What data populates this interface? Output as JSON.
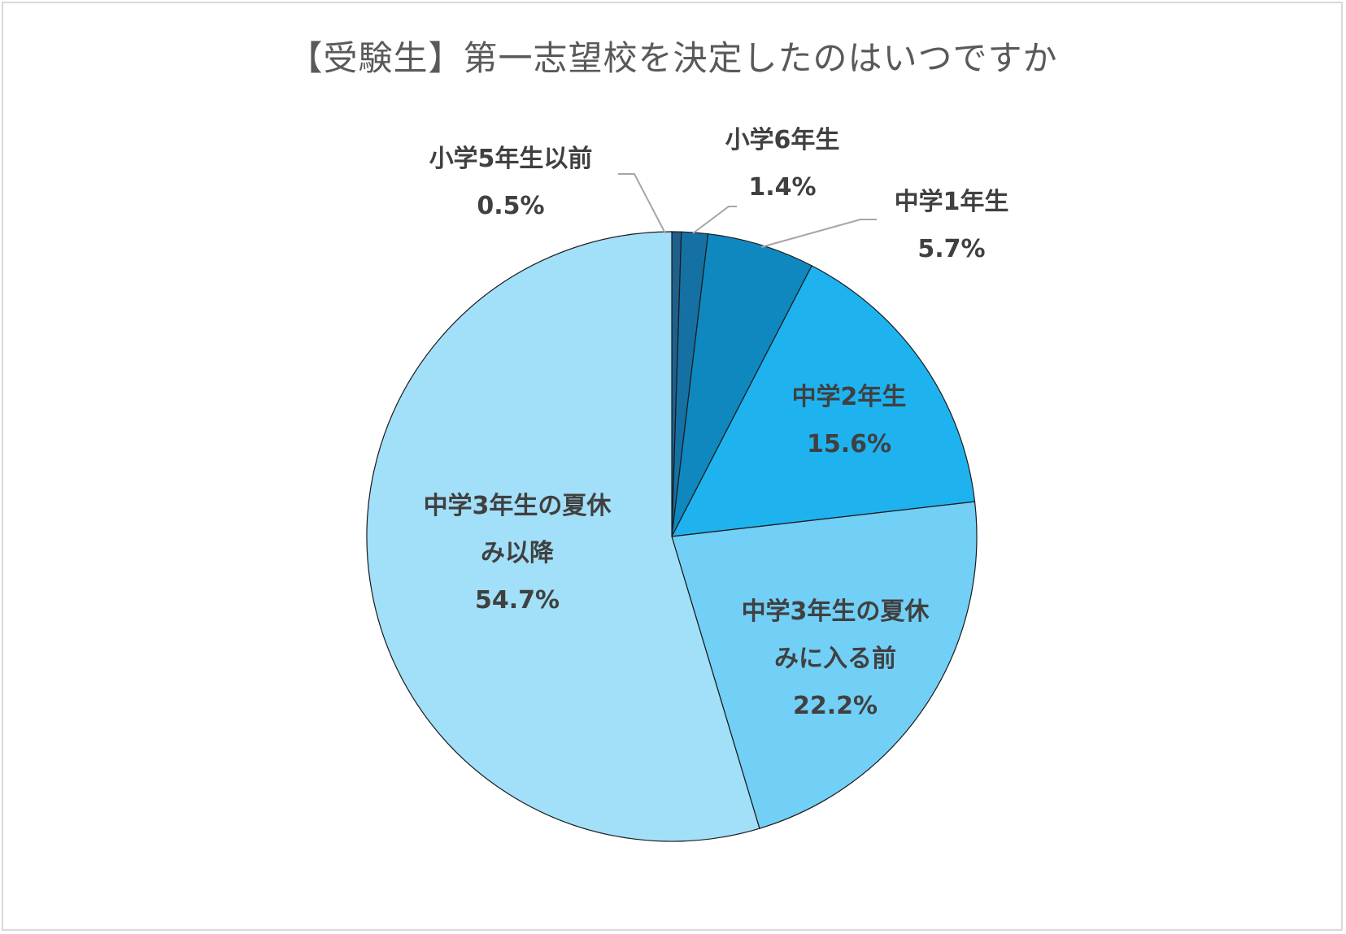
{
  "chart_data": {
    "type": "pie",
    "title": "【受験生】第一志望校を決定したのはいつですか",
    "slices": [
      {
        "label": [
          "小学5年生以前"
        ],
        "value": 0.5,
        "value_label": "0.5%",
        "color": "#1f5f8b"
      },
      {
        "label": [
          "小学6年生"
        ],
        "value": 1.4,
        "value_label": "1.4%",
        "color": "#1571a3"
      },
      {
        "label": [
          "中学1年生"
        ],
        "value": 5.7,
        "value_label": "5.7%",
        "color": "#0f88bf"
      },
      {
        "label": [
          "中学2年生"
        ],
        "value": 15.6,
        "value_label": "15.6%",
        "color": "#1eb2ef"
      },
      {
        "label": [
          "中学3年生の夏休",
          "みに入る前"
        ],
        "value": 22.2,
        "value_label": "22.2%",
        "color": "#72cff5"
      },
      {
        "label": [
          "中学3年生の夏休",
          "み以降"
        ],
        "value": 54.7,
        "value_label": "54.7%",
        "color": "#a2dff8"
      }
    ],
    "start_angle_deg": 0,
    "direction": "clockwise",
    "legend": "none"
  }
}
